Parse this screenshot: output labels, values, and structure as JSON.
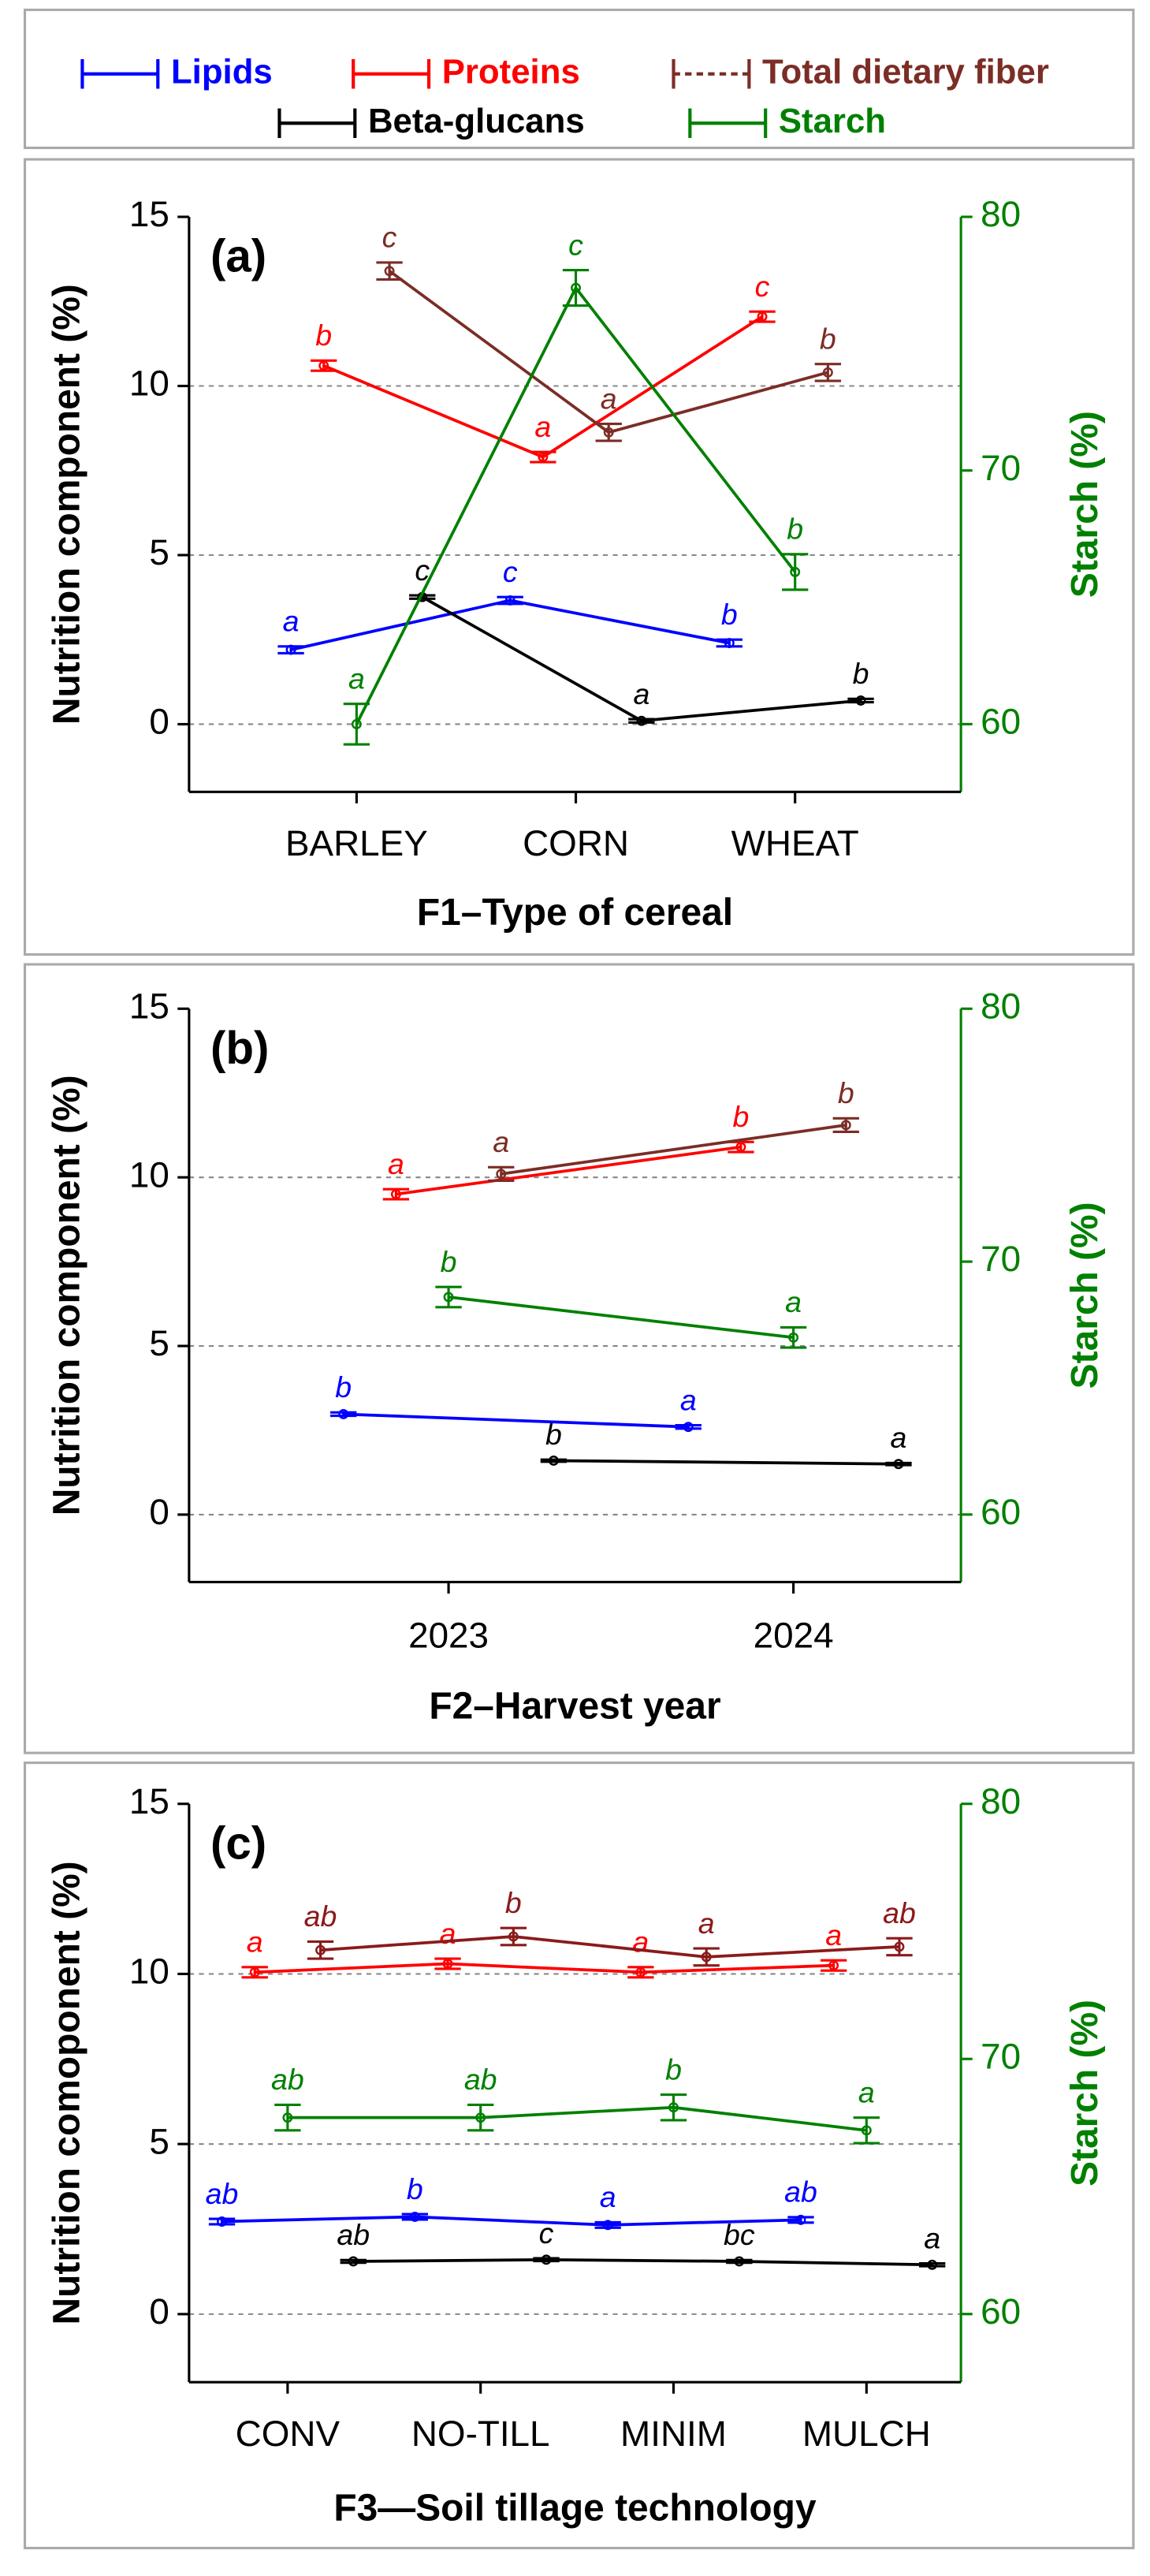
{
  "chart_data": [
    {
      "type": "line",
      "title": "(a)",
      "x_label": "F1–Type of cereal",
      "y_label": "Nutrition component (%)",
      "y2_label": "Starch (%)",
      "categories": [
        "BARLEY",
        "CORN",
        "WHEAT"
      ],
      "ylim": [
        -2,
        15
      ],
      "yticks": [
        0,
        5,
        10,
        15
      ],
      "y2lim": [
        57.33,
        80
      ],
      "y2ticks": [
        60,
        70,
        80
      ],
      "grid": true,
      "series": [
        {
          "name": "Lipids",
          "color": "#0000ff",
          "values": [
            2.2,
            3.66,
            2.4
          ],
          "errors": [
            0.1,
            0.1,
            0.1
          ],
          "letters": [
            "a",
            "c",
            "b"
          ]
        },
        {
          "name": "Proteins",
          "color": "#ff0000",
          "values": [
            10.6,
            7.9,
            12.05
          ],
          "errors": [
            0.15,
            0.15,
            0.15
          ],
          "letters": [
            "b",
            "a",
            "c"
          ]
        },
        {
          "name": "Total dietary fiber",
          "color": "#7b2d26",
          "values": [
            13.4,
            8.63,
            10.4
          ],
          "errors": [
            0.25,
            0.25,
            0.25
          ],
          "letters": [
            "c",
            "a",
            "b"
          ]
        },
        {
          "name": "Beta-glucans",
          "color": "#000000",
          "values": [
            3.76,
            0.1,
            0.7
          ],
          "errors": [
            0.05,
            0.05,
            0.05
          ],
          "letters": [
            "c",
            "a",
            "b"
          ]
        },
        {
          "name": "Starch",
          "color": "#008000",
          "axis": "y2",
          "values": [
            60,
            77.2,
            66.0
          ],
          "errors": [
            0.8,
            0.7,
            0.7
          ],
          "letters": [
            "a",
            "c",
            "b"
          ]
        }
      ]
    },
    {
      "type": "line",
      "title": "(b)",
      "x_label": "F2–Harvest year",
      "y_label": "Nutrition component (%)",
      "y2_label": "Starch (%)",
      "categories": [
        "2023",
        "2024"
      ],
      "ylim": [
        -2,
        15
      ],
      "yticks": [
        0,
        5,
        10,
        15
      ],
      "y2lim": [
        57.33,
        80
      ],
      "y2ticks": [
        60,
        70,
        80
      ],
      "grid": true,
      "series": [
        {
          "name": "Lipids",
          "color": "#0000ff",
          "values": [
            2.98,
            2.6
          ],
          "errors": [
            0.05,
            0.05
          ],
          "letters": [
            "b",
            "a"
          ]
        },
        {
          "name": "Proteins",
          "color": "#ff0000",
          "values": [
            9.5,
            10.9
          ],
          "errors": [
            0.15,
            0.15
          ],
          "letters": [
            "a",
            "b"
          ]
        },
        {
          "name": "Total dietary fiber",
          "color": "#7b2d26",
          "values": [
            10.1,
            11.55
          ],
          "errors": [
            0.2,
            0.2
          ],
          "letters": [
            "a",
            "b"
          ]
        },
        {
          "name": "Beta-glucans",
          "color": "#000000",
          "values": [
            1.6,
            1.5
          ],
          "errors": [
            0.03,
            0.03
          ],
          "letters": [
            "b",
            "a"
          ]
        },
        {
          "name": "Starch",
          "color": "#008000",
          "axis": "y2",
          "values": [
            68.6,
            67.0
          ],
          "errors": [
            0.4,
            0.4
          ],
          "letters": [
            "b",
            "a"
          ]
        }
      ]
    },
    {
      "type": "line",
      "title": "(c)",
      "x_label": "F3—Soil tillage technology",
      "y_label": "Nutrition comoponent (%)",
      "y2_label": "Starch (%)",
      "categories": [
        "CONV",
        "NO-TILL",
        "MINIM",
        "MULCH"
      ],
      "ylim": [
        -2,
        15
      ],
      "yticks": [
        0,
        5,
        10,
        15
      ],
      "y2lim": [
        57.33,
        80
      ],
      "y2ticks": [
        60,
        70,
        80
      ],
      "grid": true,
      "series": [
        {
          "name": "Lipids",
          "color": "#0000ff",
          "values": [
            2.72,
            2.86,
            2.62,
            2.77
          ],
          "errors": [
            0.08,
            0.08,
            0.08,
            0.08
          ],
          "letters": [
            "ab",
            "b",
            "a",
            "ab"
          ]
        },
        {
          "name": "Proteins",
          "color": "#ff0000",
          "values": [
            10.05,
            10.3,
            10.05,
            10.25
          ],
          "errors": [
            0.15,
            0.15,
            0.15,
            0.15
          ],
          "letters": [
            "a",
            "a",
            "a",
            "a"
          ]
        },
        {
          "name": "Total dietary fiber",
          "color": "#8b1a1a",
          "values": [
            10.7,
            11.1,
            10.5,
            10.8
          ],
          "errors": [
            0.25,
            0.25,
            0.25,
            0.25
          ],
          "letters": [
            "ab",
            "b",
            "a",
            "ab"
          ]
        },
        {
          "name": "Beta-glucans",
          "color": "#000000",
          "values": [
            1.55,
            1.6,
            1.55,
            1.45
          ],
          "errors": [
            0.04,
            0.04,
            0.04,
            0.04
          ],
          "letters": [
            "ab",
            "c",
            "bc",
            "a"
          ]
        },
        {
          "name": "Starch",
          "color": "#008000",
          "axis": "y2",
          "values": [
            67.7,
            67.7,
            68.1,
            67.2
          ],
          "errors": [
            0.5,
            0.5,
            0.5,
            0.5
          ],
          "letters": [
            "ab",
            "ab",
            "b",
            "a"
          ]
        }
      ]
    }
  ]
}
